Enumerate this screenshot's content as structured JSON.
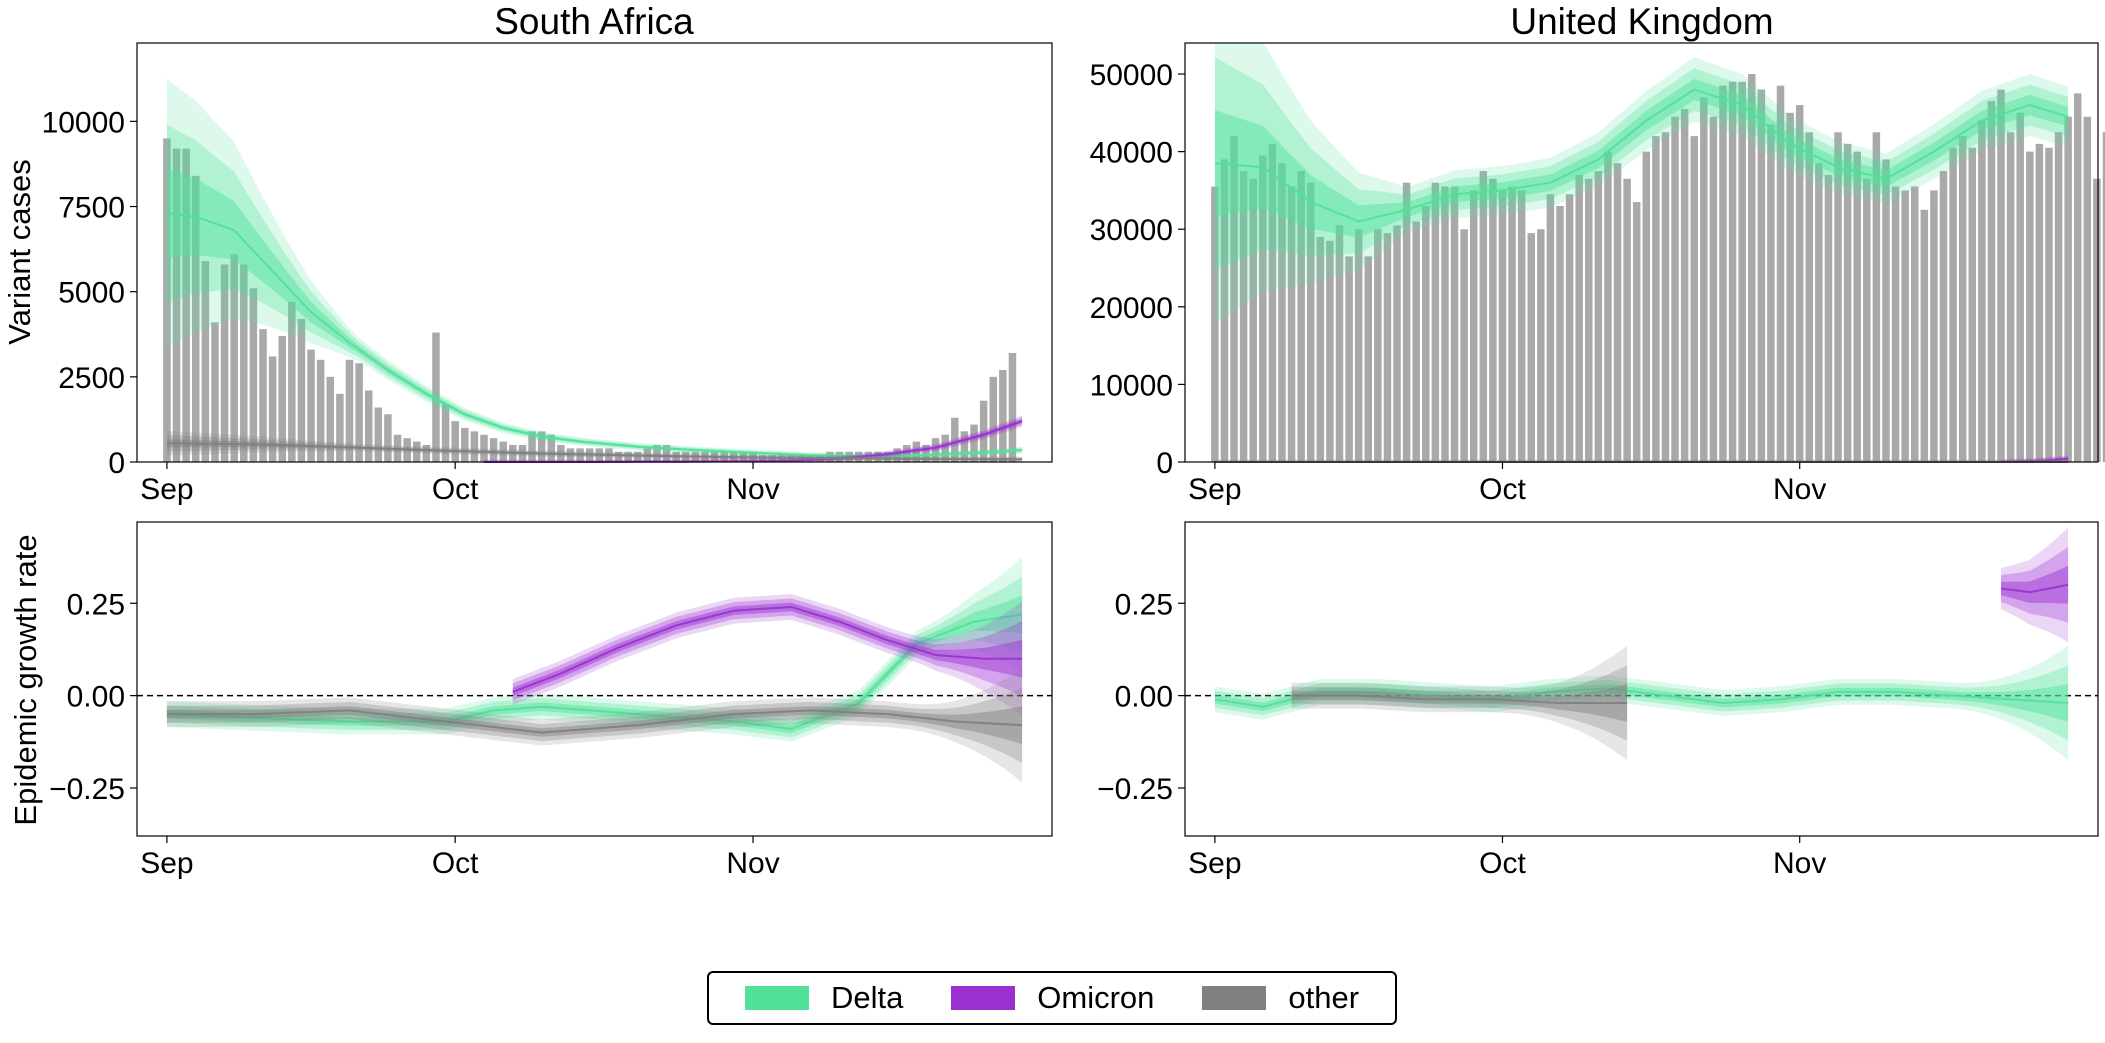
{
  "colors": {
    "Delta": "#50e09a",
    "Omicron": "#9a30d0",
    "other": "#808080",
    "bars": "#a9a9a9"
  },
  "legend": {
    "items": [
      "Delta",
      "Omicron",
      "other"
    ],
    "placement": "bottom-center"
  },
  "chart_data": [
    {
      "panel": "South Africa - Variant cases",
      "type": "bar",
      "title": "South Africa",
      "ylabel": "Variant cases",
      "xlabel": "",
      "x_ticks": [
        "Sep",
        "Oct",
        "Nov"
      ],
      "y_ticks": [
        0,
        2500,
        5000,
        7500,
        10000
      ],
      "ylim": [
        0,
        12300
      ],
      "x_domain": [
        "2021-09-01",
        "2021-11-29"
      ],
      "grid": false,
      "bars": {
        "name": "cases",
        "start_date": "2021-09-01",
        "values": [
          9500,
          9200,
          9200,
          8400,
          5900,
          4100,
          5800,
          6100,
          5800,
          5100,
          3900,
          3100,
          3700,
          4700,
          4200,
          3300,
          3000,
          2500,
          2000,
          3000,
          2900,
          2100,
          1600,
          1400,
          800,
          700,
          600,
          500,
          3800,
          1700,
          1200,
          1000,
          900,
          800,
          700,
          600,
          500,
          500,
          900,
          900,
          800,
          500,
          400,
          400,
          400,
          400,
          400,
          300,
          300,
          300,
          400,
          500,
          500,
          300,
          300,
          300,
          300,
          300,
          300,
          300,
          300,
          300,
          200,
          200,
          200,
          200,
          200,
          200,
          200,
          300,
          300,
          300,
          300,
          300,
          300,
          300,
          400,
          500,
          600,
          500,
          700,
          800,
          1300,
          900,
          1100,
          1800,
          2500,
          2700,
          3200
        ]
      },
      "series": [
        {
          "name": "Delta",
          "x": [
            "2021-09-01",
            "2021-09-04",
            "2021-09-08",
            "2021-09-12",
            "2021-09-16",
            "2021-09-20",
            "2021-09-24",
            "2021-09-28",
            "2021-10-02",
            "2021-10-06",
            "2021-10-10",
            "2021-10-14",
            "2021-10-20",
            "2021-10-26",
            "2021-11-01",
            "2021-11-07",
            "2021-11-13",
            "2021-11-19",
            "2021-11-25",
            "2021-11-29"
          ],
          "y": [
            7300,
            7200,
            6800,
            5600,
            4400,
            3500,
            2700,
            2000,
            1400,
            1000,
            750,
            600,
            450,
            350,
            270,
            200,
            170,
            200,
            280,
            350
          ]
        },
        {
          "name": "Omicron",
          "x": [
            "2021-10-04",
            "2021-10-15",
            "2021-10-25",
            "2021-11-01",
            "2021-11-05",
            "2021-11-10",
            "2021-11-15",
            "2021-11-20",
            "2021-11-25",
            "2021-11-29"
          ],
          "y": [
            0,
            0,
            10,
            20,
            40,
            100,
            230,
            420,
            800,
            1200
          ]
        },
        {
          "name": "other",
          "x": [
            "2021-09-01",
            "2021-09-10",
            "2021-09-20",
            "2021-09-30",
            "2021-10-10",
            "2021-10-20",
            "2021-10-30",
            "2021-11-10",
            "2021-11-20",
            "2021-11-29"
          ],
          "y": [
            550,
            520,
            430,
            330,
            250,
            190,
            140,
            110,
            90,
            80
          ]
        }
      ]
    },
    {
      "panel": "United Kingdom - Variant cases",
      "type": "bar",
      "title": "United Kingdom",
      "ylabel": "",
      "xlabel": "",
      "x_ticks": [
        "Sep",
        "Oct",
        "Nov"
      ],
      "y_ticks": [
        0,
        10000,
        20000,
        30000,
        40000,
        50000
      ],
      "ylim": [
        0,
        54000
      ],
      "x_domain": [
        "2021-09-01",
        "2021-11-29"
      ],
      "grid": false,
      "bars": {
        "name": "cases",
        "start_date": "2021-09-01",
        "values": [
          35500,
          39000,
          42000,
          37500,
          36500,
          39500,
          41000,
          38500,
          35500,
          37500,
          36000,
          29000,
          28500,
          30500,
          26500,
          30000,
          26500,
          30000,
          29500,
          30500,
          36000,
          31000,
          33000,
          36000,
          35500,
          35500,
          30000,
          35000,
          37500,
          36500,
          35000,
          35500,
          35000,
          29500,
          30000,
          34500,
          33000,
          34500,
          37000,
          36500,
          37500,
          40000,
          38500,
          36500,
          33500,
          40000,
          42000,
          42500,
          44500,
          45500,
          42000,
          47000,
          44500,
          48500,
          49000,
          49000,
          50000,
          48000,
          43500,
          48500,
          45000,
          46000,
          42500,
          38500,
          37000,
          42500,
          41000,
          40000,
          36500,
          42500,
          39000,
          35500,
          35000,
          35500,
          32500,
          35000,
          37500,
          40500,
          42000,
          40500,
          44000,
          46500,
          48000,
          42500,
          45000,
          40000,
          41000,
          40500,
          42500,
          44500,
          47500,
          44500,
          36500,
          42500,
          40500
        ]
      },
      "series": [
        {
          "name": "Delta",
          "x": [
            "2021-09-01",
            "2021-09-06",
            "2021-09-11",
            "2021-09-16",
            "2021-09-21",
            "2021-09-26",
            "2021-10-01",
            "2021-10-06",
            "2021-10-11",
            "2021-10-16",
            "2021-10-21",
            "2021-10-26",
            "2021-10-31",
            "2021-11-05",
            "2021-11-10",
            "2021-11-15",
            "2021-11-20",
            "2021-11-25",
            "2021-11-29"
          ],
          "y": [
            38500,
            38000,
            33500,
            31000,
            32500,
            34500,
            35000,
            36000,
            39000,
            44000,
            48000,
            46000,
            41000,
            38000,
            36500,
            40000,
            44000,
            46000,
            44500
          ]
        },
        {
          "name": "Omicron",
          "x": [
            "2021-11-22",
            "2021-11-26",
            "2021-11-29"
          ],
          "y": [
            0,
            150,
            400
          ]
        },
        {
          "name": "other",
          "x": [
            "2021-09-01",
            "2021-11-29"
          ],
          "y": [
            0,
            0
          ]
        }
      ]
    },
    {
      "panel": "South Africa - Epidemic growth rate",
      "type": "line",
      "title": "",
      "ylabel": "Epidemic growth rate",
      "xlabel": "",
      "x_ticks": [
        "Sep",
        "Oct",
        "Nov"
      ],
      "y_ticks": [
        "0.25",
        "0.00",
        "−0.25"
      ],
      "ylim": [
        -0.38,
        0.47
      ],
      "x_domain": [
        "2021-09-01",
        "2021-11-29"
      ],
      "reference_line": 0,
      "grid": false,
      "series": [
        {
          "name": "Delta",
          "x": [
            "2021-09-01",
            "2021-09-10",
            "2021-09-20",
            "2021-09-30",
            "2021-10-05",
            "2021-10-10",
            "2021-10-20",
            "2021-10-30",
            "2021-11-05",
            "2021-11-12",
            "2021-11-18",
            "2021-11-24",
            "2021-11-29"
          ],
          "y": [
            -0.05,
            -0.06,
            -0.07,
            -0.07,
            -0.04,
            -0.03,
            -0.05,
            -0.07,
            -0.09,
            -0.02,
            0.14,
            0.2,
            0.22
          ]
        },
        {
          "name": "Omicron",
          "x": [
            "2021-10-07",
            "2021-10-12",
            "2021-10-18",
            "2021-10-24",
            "2021-10-30",
            "2021-11-05",
            "2021-11-10",
            "2021-11-15",
            "2021-11-20",
            "2021-11-25",
            "2021-11-29"
          ],
          "y": [
            0.01,
            0.06,
            0.13,
            0.19,
            0.23,
            0.24,
            0.2,
            0.15,
            0.11,
            0.1,
            0.1
          ]
        },
        {
          "name": "other",
          "x": [
            "2021-09-01",
            "2021-09-10",
            "2021-09-20",
            "2021-09-30",
            "2021-10-10",
            "2021-10-20",
            "2021-10-30",
            "2021-11-07",
            "2021-11-15",
            "2021-11-22",
            "2021-11-29"
          ],
          "y": [
            -0.05,
            -0.05,
            -0.04,
            -0.07,
            -0.1,
            -0.08,
            -0.05,
            -0.04,
            -0.05,
            -0.07,
            -0.08
          ]
        }
      ]
    },
    {
      "panel": "United Kingdom - Epidemic growth rate",
      "type": "line",
      "title": "",
      "ylabel": "",
      "xlabel": "",
      "x_ticks": [
        "Sep",
        "Oct",
        "Nov"
      ],
      "y_ticks": [
        "0.25",
        "0.00",
        "−0.25"
      ],
      "ylim": [
        -0.38,
        0.47
      ],
      "x_domain": [
        "2021-09-01",
        "2021-11-29"
      ],
      "reference_line": 0,
      "grid": false,
      "series": [
        {
          "name": "Delta",
          "x": [
            "2021-09-01",
            "2021-09-06",
            "2021-09-12",
            "2021-09-18",
            "2021-09-24",
            "2021-09-30",
            "2021-10-06",
            "2021-10-12",
            "2021-10-18",
            "2021-10-24",
            "2021-10-30",
            "2021-11-05",
            "2021-11-11",
            "2021-11-17",
            "2021-11-23",
            "2021-11-29"
          ],
          "y": [
            -0.01,
            -0.03,
            0.01,
            0.01,
            0.0,
            -0.01,
            0.01,
            0.02,
            0.0,
            -0.02,
            -0.01,
            0.01,
            0.01,
            0.0,
            -0.01,
            -0.02
          ]
        },
        {
          "name": "Omicron",
          "x": [
            "2021-11-22",
            "2021-11-25",
            "2021-11-29"
          ],
          "y": [
            0.29,
            0.28,
            0.3
          ]
        },
        {
          "name": "other",
          "x": [
            "2021-09-09",
            "2021-09-16",
            "2021-09-23",
            "2021-09-30",
            "2021-10-07",
            "2021-10-14"
          ],
          "y": [
            0.0,
            0.0,
            -0.01,
            -0.01,
            -0.02,
            -0.02
          ]
        }
      ]
    }
  ]
}
